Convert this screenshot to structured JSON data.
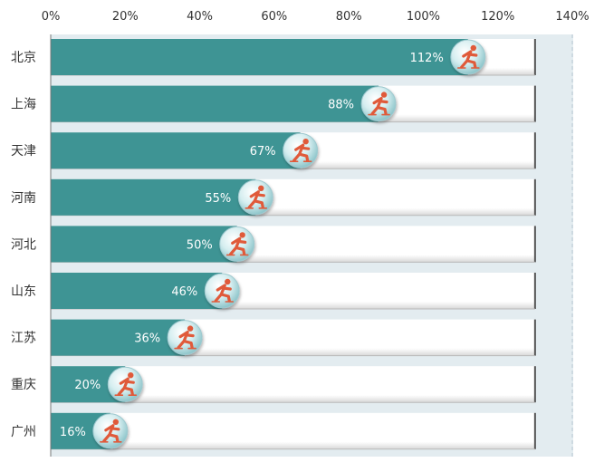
{
  "chart_data": {
    "type": "bar",
    "orientation": "horizontal",
    "categories": [
      "北京",
      "上海",
      "天津",
      "河南",
      "河北",
      "山东",
      "江苏",
      "重庆",
      "广州"
    ],
    "values": [
      112,
      88,
      67,
      55,
      50,
      46,
      36,
      20,
      16
    ],
    "value_labels": [
      "112%",
      "88%",
      "67%",
      "55%",
      "50%",
      "46%",
      "36%",
      "20%",
      "16%"
    ],
    "xlim": [
      0,
      140
    ],
    "ticks": [
      0,
      20,
      40,
      60,
      80,
      100,
      120,
      140
    ],
    "tick_labels": [
      "0%",
      "20%",
      "40%",
      "60%",
      "80%",
      "100%",
      "120%",
      "140%"
    ],
    "track_max": 130,
    "grid": false,
    "legend": "none",
    "title": "",
    "xlabel": "",
    "ylabel": "",
    "marker_icon": "speed-skater-icon",
    "colors": {
      "bar": "#3e9494",
      "track": "#ffffff",
      "track_edge": "#555555",
      "plot_bg": "#e3ecf0",
      "marker_fill": "#d6eef0",
      "marker_icon": "#e05a3a"
    }
  }
}
